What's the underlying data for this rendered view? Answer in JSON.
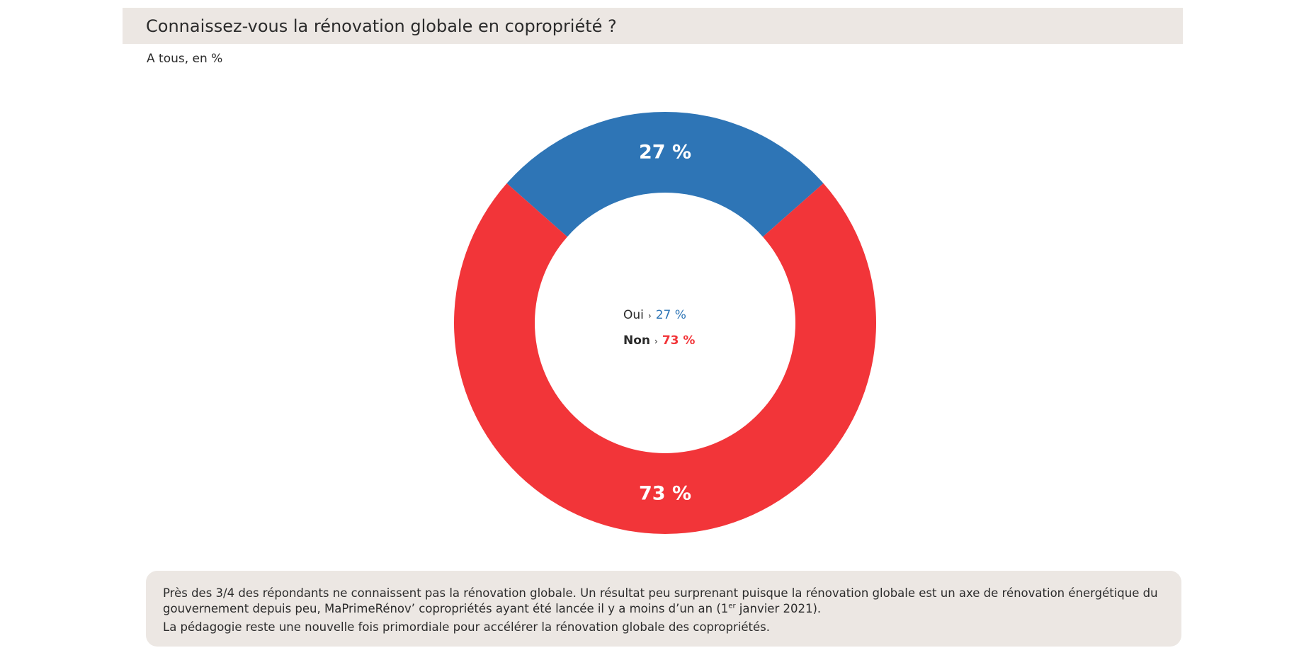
{
  "header": {
    "title": "Connaissez-vous la rénovation globale en copropriété ?",
    "subtitle": "A tous, en %"
  },
  "colors": {
    "oui": "#2e75b6",
    "non": "#f23539"
  },
  "legend": {
    "oui_label": "Oui",
    "oui_value": "27 %",
    "non_label": "Non",
    "non_value": "73 %",
    "separator": "›"
  },
  "chart_data": {
    "type": "pie",
    "categories": [
      "Oui",
      "Non"
    ],
    "values": [
      27,
      73
    ],
    "unit": "%",
    "data_labels": [
      "27 %",
      "73 %"
    ],
    "style": "donut",
    "legend_placement": "center"
  },
  "note": {
    "line1": " Près des 3/4 des répondants ne connaissent pas la rénovation globale. Un résultat peu surprenant puisque la rénovation globale est un axe de rénovation énergétique du gouvernement depuis peu, MaPrimeRénov’ copropriétés ayant été lancée il y a moins d’un an (1",
    "line1_sup": "er",
    "line1_end": " janvier 2021).",
    "line2": "La pédagogie reste une nouvelle fois primordiale pour accélérer la rénovation globale des copropriétés."
  }
}
